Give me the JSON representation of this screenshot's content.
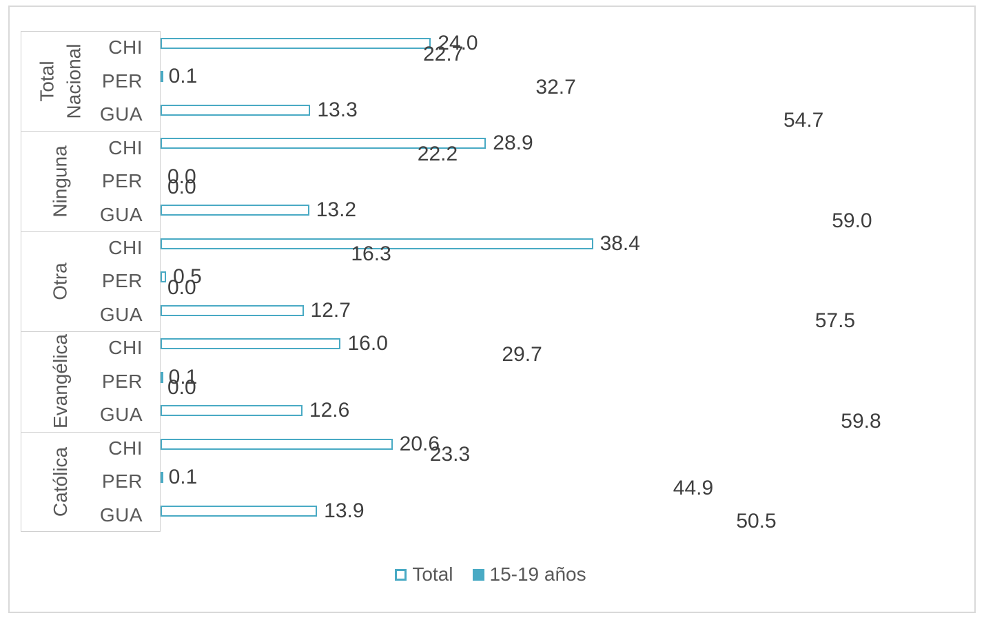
{
  "chart": {
    "colors": {
      "bar_teal": "#49aac4",
      "data_label_text": "#3f3f3f",
      "axis_text": "#595959",
      "frame_border": "#d9d9d9"
    },
    "legend": {
      "items": [
        {
          "label": "Total",
          "swatch": "outline"
        },
        {
          "label": "15-19 años",
          "swatch": "solid"
        }
      ]
    }
  },
  "chart_data": {
    "type": "bar",
    "orientation": "horizontal",
    "title": "",
    "xlabel": "",
    "ylabel": "",
    "xlim": [
      0,
      70
    ],
    "grid": false,
    "value_labels": true,
    "value_label_format": "one_decimal",
    "legend_position": "bottom",
    "series_names": [
      "Total",
      "15-19 años"
    ],
    "groups": [
      {
        "name": "Total Nacional",
        "label_lines": [
          "Total",
          "Nacional"
        ],
        "rows": [
          {
            "country": "CHI",
            "total": 24.0,
            "age15_19": 22.7
          },
          {
            "country": "PER",
            "total": 0.1,
            "age15_19": 32.7
          },
          {
            "country": "GUA",
            "total": 13.3,
            "age15_19": 54.7
          }
        ]
      },
      {
        "name": "Ninguna",
        "label_lines": [
          "Ninguna"
        ],
        "rows": [
          {
            "country": "CHI",
            "total": 28.9,
            "age15_19": 22.2
          },
          {
            "country": "PER",
            "total": 0.0,
            "age15_19": 0.0
          },
          {
            "country": "GUA",
            "total": 13.2,
            "age15_19": 59.0
          }
        ]
      },
      {
        "name": "Otra",
        "label_lines": [
          "Otra"
        ],
        "rows": [
          {
            "country": "CHI",
            "total": 38.4,
            "age15_19": 16.3
          },
          {
            "country": "PER",
            "total": 0.5,
            "age15_19": 0.0
          },
          {
            "country": "GUA",
            "total": 12.7,
            "age15_19": 57.5
          }
        ]
      },
      {
        "name": "Evangélica",
        "label_lines": [
          "Evangélica"
        ],
        "rows": [
          {
            "country": "CHI",
            "total": 16.0,
            "age15_19": 29.7
          },
          {
            "country": "PER",
            "total": 0.1,
            "age15_19": 0.0
          },
          {
            "country": "GUA",
            "total": 12.6,
            "age15_19": 59.8
          }
        ]
      },
      {
        "name": "Católica",
        "label_lines": [
          "Católica"
        ],
        "rows": [
          {
            "country": "CHI",
            "total": 20.6,
            "age15_19": 23.3
          },
          {
            "country": "PER",
            "total": 0.1,
            "age15_19": 44.9
          },
          {
            "country": "GUA",
            "total": 13.9,
            "age15_19": 50.5
          }
        ]
      }
    ]
  }
}
